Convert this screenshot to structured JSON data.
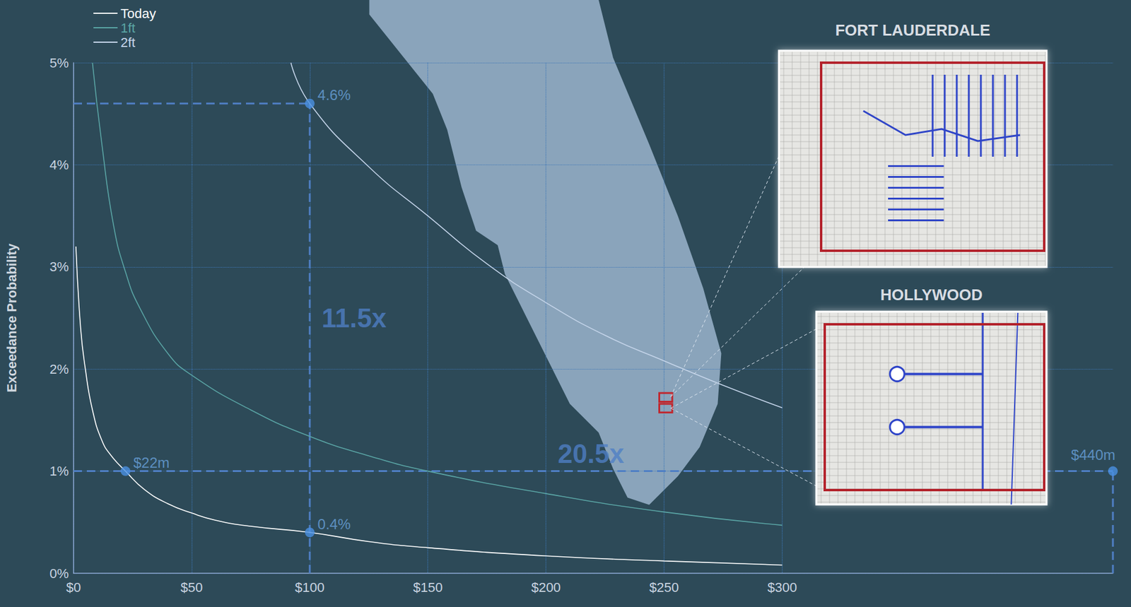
{
  "chart_data": {
    "type": "line",
    "y_label": "Exceedance Probability",
    "xlim": [
      0,
      440
    ],
    "xticks": [
      {
        "value": 0,
        "label": "$0"
      },
      {
        "value": 50,
        "label": "$50"
      },
      {
        "value": 100,
        "label": "$100"
      },
      {
        "value": 150,
        "label": "$150"
      },
      {
        "value": 200,
        "label": "$200"
      },
      {
        "value": 250,
        "label": "$250"
      },
      {
        "value": 300,
        "label": "$300"
      }
    ],
    "ylim": [
      0,
      5
    ],
    "yticks": [
      {
        "value": 0,
        "label": "0%"
      },
      {
        "value": 1,
        "label": "1%"
      },
      {
        "value": 2,
        "label": "2%"
      },
      {
        "value": 3,
        "label": "3%"
      },
      {
        "value": 4,
        "label": "4%"
      },
      {
        "value": 5,
        "label": "5%"
      }
    ],
    "grid": true,
    "legend": "top-left",
    "series": [
      {
        "name": "Today",
        "color": "#ffffff",
        "x": [
          1,
          3,
          5,
          8,
          12,
          16,
          22,
          30,
          40,
          50,
          60,
          75,
          100,
          125,
          150,
          200,
          250,
          300
        ],
        "values": [
          3.2,
          2.4,
          2.0,
          1.6,
          1.3,
          1.15,
          1.0,
          0.82,
          0.68,
          0.59,
          0.52,
          0.46,
          0.4,
          0.31,
          0.25,
          0.17,
          0.12,
          0.08
        ]
      },
      {
        "name": "1ft",
        "color": "#5aa5a5",
        "x": [
          8,
          12,
          17,
          22,
          28,
          40,
          50,
          75,
          100,
          125,
          150,
          200,
          250,
          300
        ],
        "values": [
          5,
          4.2,
          3.4,
          2.95,
          2.6,
          2.15,
          1.94,
          1.6,
          1.34,
          1.15,
          1.0,
          0.78,
          0.6,
          0.47
        ]
      },
      {
        "name": "2ft",
        "color": "#c5d5ea",
        "x": [
          92,
          100,
          125,
          150,
          175,
          200,
          225,
          250,
          275,
          300
        ],
        "values": [
          5,
          4.6,
          3.98,
          3.5,
          3.03,
          2.65,
          2.33,
          2.08,
          1.84,
          1.62
        ]
      }
    ],
    "reference_points": [
      {
        "x": 100,
        "y": 4.6,
        "label": "4.6%"
      },
      {
        "x": 100,
        "y": 0.4,
        "label": "0.4%"
      },
      {
        "x": 22,
        "y": 1,
        "label": "$22m"
      },
      {
        "x": 440,
        "y": 1,
        "label": "$440m"
      }
    ],
    "guides": [
      {
        "x": [
          0,
          100
        ],
        "y": [
          4.6,
          4.6
        ]
      },
      {
        "x": [
          100,
          100
        ],
        "y": [
          0,
          4.6
        ]
      },
      {
        "x": [
          0,
          440
        ],
        "y": [
          1,
          1
        ]
      },
      {
        "x": [
          440,
          440
        ],
        "y": [
          0,
          1
        ]
      }
    ],
    "annotations": [
      {
        "text": "11.5x",
        "x": 105,
        "y": 2.5
      },
      {
        "text": "20.5x",
        "x": 205,
        "y": 1.17
      }
    ],
    "map_insets": [
      "FORT LAUDERDALE",
      "HOLLYWOOD"
    ]
  }
}
